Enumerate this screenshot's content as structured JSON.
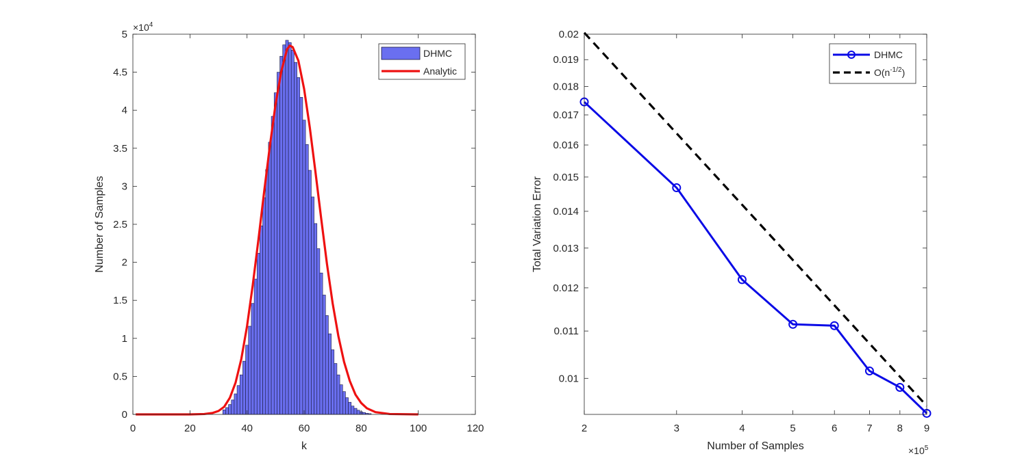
{
  "chart_data": [
    {
      "type": "bar",
      "title": "",
      "xlabel": "k",
      "ylabel": "Number of Samples",
      "xlim": [
        0,
        120
      ],
      "ylim": [
        0,
        50000
      ],
      "x_ticks": [
        0,
        20,
        40,
        60,
        80,
        100,
        120
      ],
      "y_ticks": [
        0,
        0.5,
        1,
        1.5,
        2,
        2.5,
        3,
        3.5,
        4,
        4.5,
        5
      ],
      "y_tick_labels": [
        "0",
        "0.5",
        "1",
        "1.5",
        "2",
        "2.5",
        "3",
        "3.5",
        "4",
        "4.5",
        "5"
      ],
      "y_exponent_label": "×10",
      "y_exponent_power": "4",
      "legend_position": "top-right",
      "series": [
        {
          "name": "DHMC",
          "kind": "histogram",
          "color": "#6a6ff0",
          "edge_color": "#1a1a40",
          "x": [
            32,
            33,
            34,
            35,
            36,
            37,
            38,
            39,
            40,
            41,
            42,
            43,
            44,
            45,
            46,
            47,
            48,
            49,
            50,
            51,
            52,
            53,
            54,
            55,
            56,
            57,
            58,
            59,
            60,
            61,
            62,
            63,
            64,
            65,
            66,
            67,
            68,
            69,
            70,
            71,
            72,
            73,
            74,
            75,
            76,
            77,
            78,
            79,
            80,
            81,
            82,
            83
          ],
          "values": [
            600,
            900,
            1300,
            1900,
            2700,
            3800,
            5200,
            7000,
            9100,
            11600,
            14600,
            17800,
            21200,
            24800,
            28500,
            32200,
            35800,
            39200,
            42300,
            45000,
            47100,
            48600,
            49200,
            48900,
            47900,
            46300,
            44300,
            41700,
            38700,
            35500,
            32100,
            28600,
            25100,
            21800,
            18600,
            15700,
            13000,
            10600,
            8500,
            6700,
            5200,
            3900,
            3000,
            2200,
            1600,
            1100,
            800,
            550,
            350,
            250,
            150,
            100
          ]
        },
        {
          "name": "Analytic",
          "kind": "line",
          "color": "#ee1111",
          "x": [
            1,
            10,
            20,
            25,
            28,
            30,
            32,
            34,
            36,
            38,
            40,
            42,
            44,
            46,
            48,
            50,
            52,
            54,
            55,
            56,
            58,
            60,
            62,
            64,
            66,
            68,
            70,
            72,
            74,
            76,
            78,
            80,
            82,
            85,
            90,
            100
          ],
          "values": [
            0,
            0,
            0,
            50,
            200,
            450,
            1000,
            2200,
            4200,
            7300,
            11600,
            17000,
            23000,
            29300,
            35300,
            40800,
            45100,
            48000,
            48500,
            48300,
            46500,
            42800,
            37700,
            31800,
            25700,
            19800,
            14600,
            10300,
            6900,
            4400,
            2600,
            1500,
            800,
            300,
            50,
            0
          ]
        }
      ]
    },
    {
      "type": "line",
      "title": "",
      "xlabel": "Number of Samples",
      "ylabel": "Total Variation Error",
      "x_scale": "log",
      "y_scale": "log",
      "xlim": [
        200000,
        900000
      ],
      "ylim": [
        0.0093,
        0.02
      ],
      "x_ticks": [
        200000,
        300000,
        400000,
        500000,
        600000,
        700000,
        800000,
        900000
      ],
      "x_tick_labels": [
        "2",
        "3",
        "4",
        "5",
        "6",
        "7",
        "8",
        "9"
      ],
      "x_exponent_label": "×10",
      "x_exponent_power": "5",
      "y_ticks": [
        0.01,
        0.011,
        0.012,
        0.013,
        0.014,
        0.015,
        0.016,
        0.017,
        0.018,
        0.019,
        0.02
      ],
      "y_tick_labels": [
        "0.01",
        "0.011",
        "0.012",
        "0.013",
        "0.014",
        "0.015",
        "0.016",
        "0.017",
        "0.018",
        "0.019",
        "0.02"
      ],
      "legend_position": "top-right",
      "series": [
        {
          "name": "DHMC",
          "color": "#0a0ae6",
          "marker": "circle",
          "x": [
            200000,
            300000,
            400000,
            500000,
            600000,
            700000,
            800000,
            900000
          ],
          "values": [
            0.01745,
            0.01468,
            0.0122,
            0.01115,
            0.01112,
            0.01015,
            0.00982,
            0.00932
          ]
        },
        {
          "name": "O(n",
          "name_sup": "-1/2",
          "name_suffix": ")",
          "color": "#000000",
          "dash": "dashed",
          "x": [
            200000,
            900000
          ],
          "values": [
            0.02006,
            0.00946
          ]
        }
      ]
    }
  ]
}
